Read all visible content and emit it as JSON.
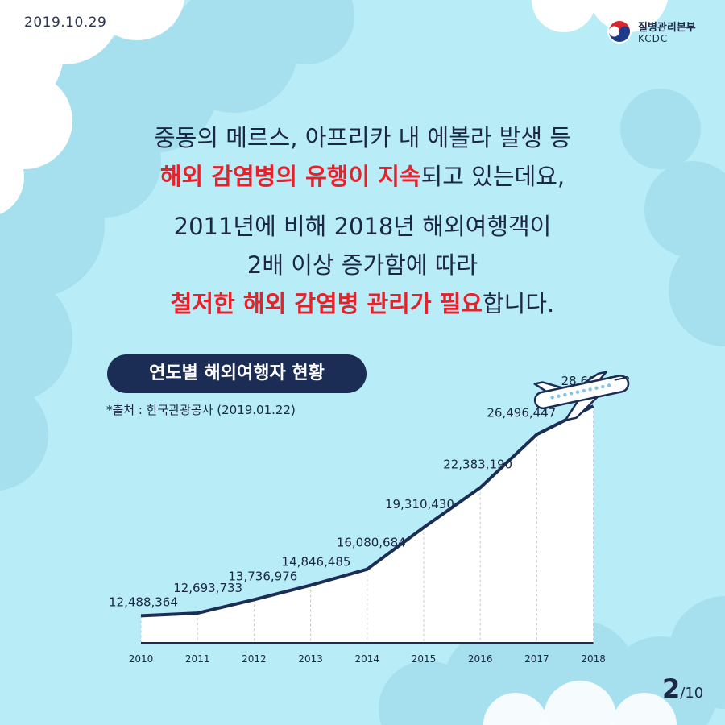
{
  "header": {
    "date": "2019.10.29"
  },
  "logo": {
    "name_ko": "질병관리본부",
    "name_en": "KCDC"
  },
  "headline": {
    "line1": "중동의 메르스, 아프리카 내 에볼라 발생 등",
    "line2_red": "해외 감염병의 유행이 지속",
    "line2_rest": "되고 있는데요,",
    "line3": "2011년에 비해 2018년 해외여행객이",
    "line4": "2배 이상 증가함에 따라",
    "line5_red": "철저한 해외 감염병 관리가 필요",
    "line5_rest": "합니다."
  },
  "colors": {
    "accent_red": "#e8202a",
    "navy": "#1c2d55",
    "sky": "#b8ecf6",
    "cloud": "#a6e0ee"
  },
  "chart_data": {
    "type": "area",
    "title": "연도별 해외여행자 현황",
    "source": "*출처 : 한국관광공사 (2019.01.22)",
    "categories": [
      "2010",
      "2011",
      "2012",
      "2013",
      "2014",
      "2015",
      "2016",
      "2017",
      "2018"
    ],
    "values": [
      12488364,
      12693733,
      13736976,
      14846485,
      16080684,
      19310430,
      22383190,
      26496447,
      28695983
    ],
    "value_labels": [
      "12,488,364",
      "12,693,733",
      "13,736,976",
      "14,846,485",
      "16,080,684",
      "19,310,430",
      "22,383,190",
      "26,496,447",
      "28,695,983"
    ],
    "grid": "vertical dashed",
    "icon": "airplane-icon"
  },
  "pagination": {
    "current": "2",
    "total": "/10"
  }
}
